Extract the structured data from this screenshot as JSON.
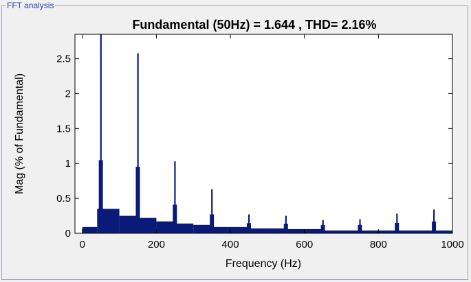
{
  "panel": {
    "title": "FFT analysis"
  },
  "colors": {
    "bar": "#0a1a78",
    "frame": "#a0a0b8",
    "panel_title": "#2b3fae"
  },
  "chart_data": {
    "type": "bar",
    "title": "Fundamental (50Hz) = 1.644 , THD= 2.16%",
    "xlabel": "Frequency (Hz)",
    "ylabel": "Mag (% of Fundamental)",
    "xlim": [
      -20,
      1000
    ],
    "ylim": [
      0,
      2.85
    ],
    "xticks": [
      0,
      200,
      400,
      600,
      800,
      1000
    ],
    "yticks": [
      0,
      0.5,
      1,
      1.5,
      2,
      2.5
    ],
    "ytick_labels": [
      "0",
      "0.5",
      "1",
      "1.5",
      "2",
      "2.5"
    ],
    "grid": false,
    "baseline_segments": [
      {
        "x": [
          0,
          40
        ],
        "y": 0.09
      },
      {
        "x": [
          40,
          100
        ],
        "y": 0.35
      },
      {
        "x": [
          100,
          145
        ],
        "y": 0.25
      },
      {
        "x": [
          155,
          200
        ],
        "y": 0.22
      },
      {
        "x": [
          200,
          245
        ],
        "y": 0.17
      },
      {
        "x": [
          255,
          300
        ],
        "y": 0.14
      },
      {
        "x": [
          300,
          345
        ],
        "y": 0.12
      },
      {
        "x": [
          355,
          450
        ],
        "y": 0.09
      },
      {
        "x": [
          450,
          550
        ],
        "y": 0.07
      },
      {
        "x": [
          550,
          650
        ],
        "y": 0.06
      },
      {
        "x": [
          650,
          1000
        ],
        "y": 0.04
      }
    ],
    "peaks": [
      {
        "x": 50,
        "y": 2.85
      },
      {
        "x": 150,
        "y": 2.58
      },
      {
        "x": 250,
        "y": 1.03
      },
      {
        "x": 350,
        "y": 0.63
      },
      {
        "x": 450,
        "y": 0.27
      },
      {
        "x": 550,
        "y": 0.25
      },
      {
        "x": 650,
        "y": 0.19
      },
      {
        "x": 750,
        "y": 0.2
      },
      {
        "x": 850,
        "y": 0.28
      },
      {
        "x": 950,
        "y": 0.34
      }
    ]
  }
}
